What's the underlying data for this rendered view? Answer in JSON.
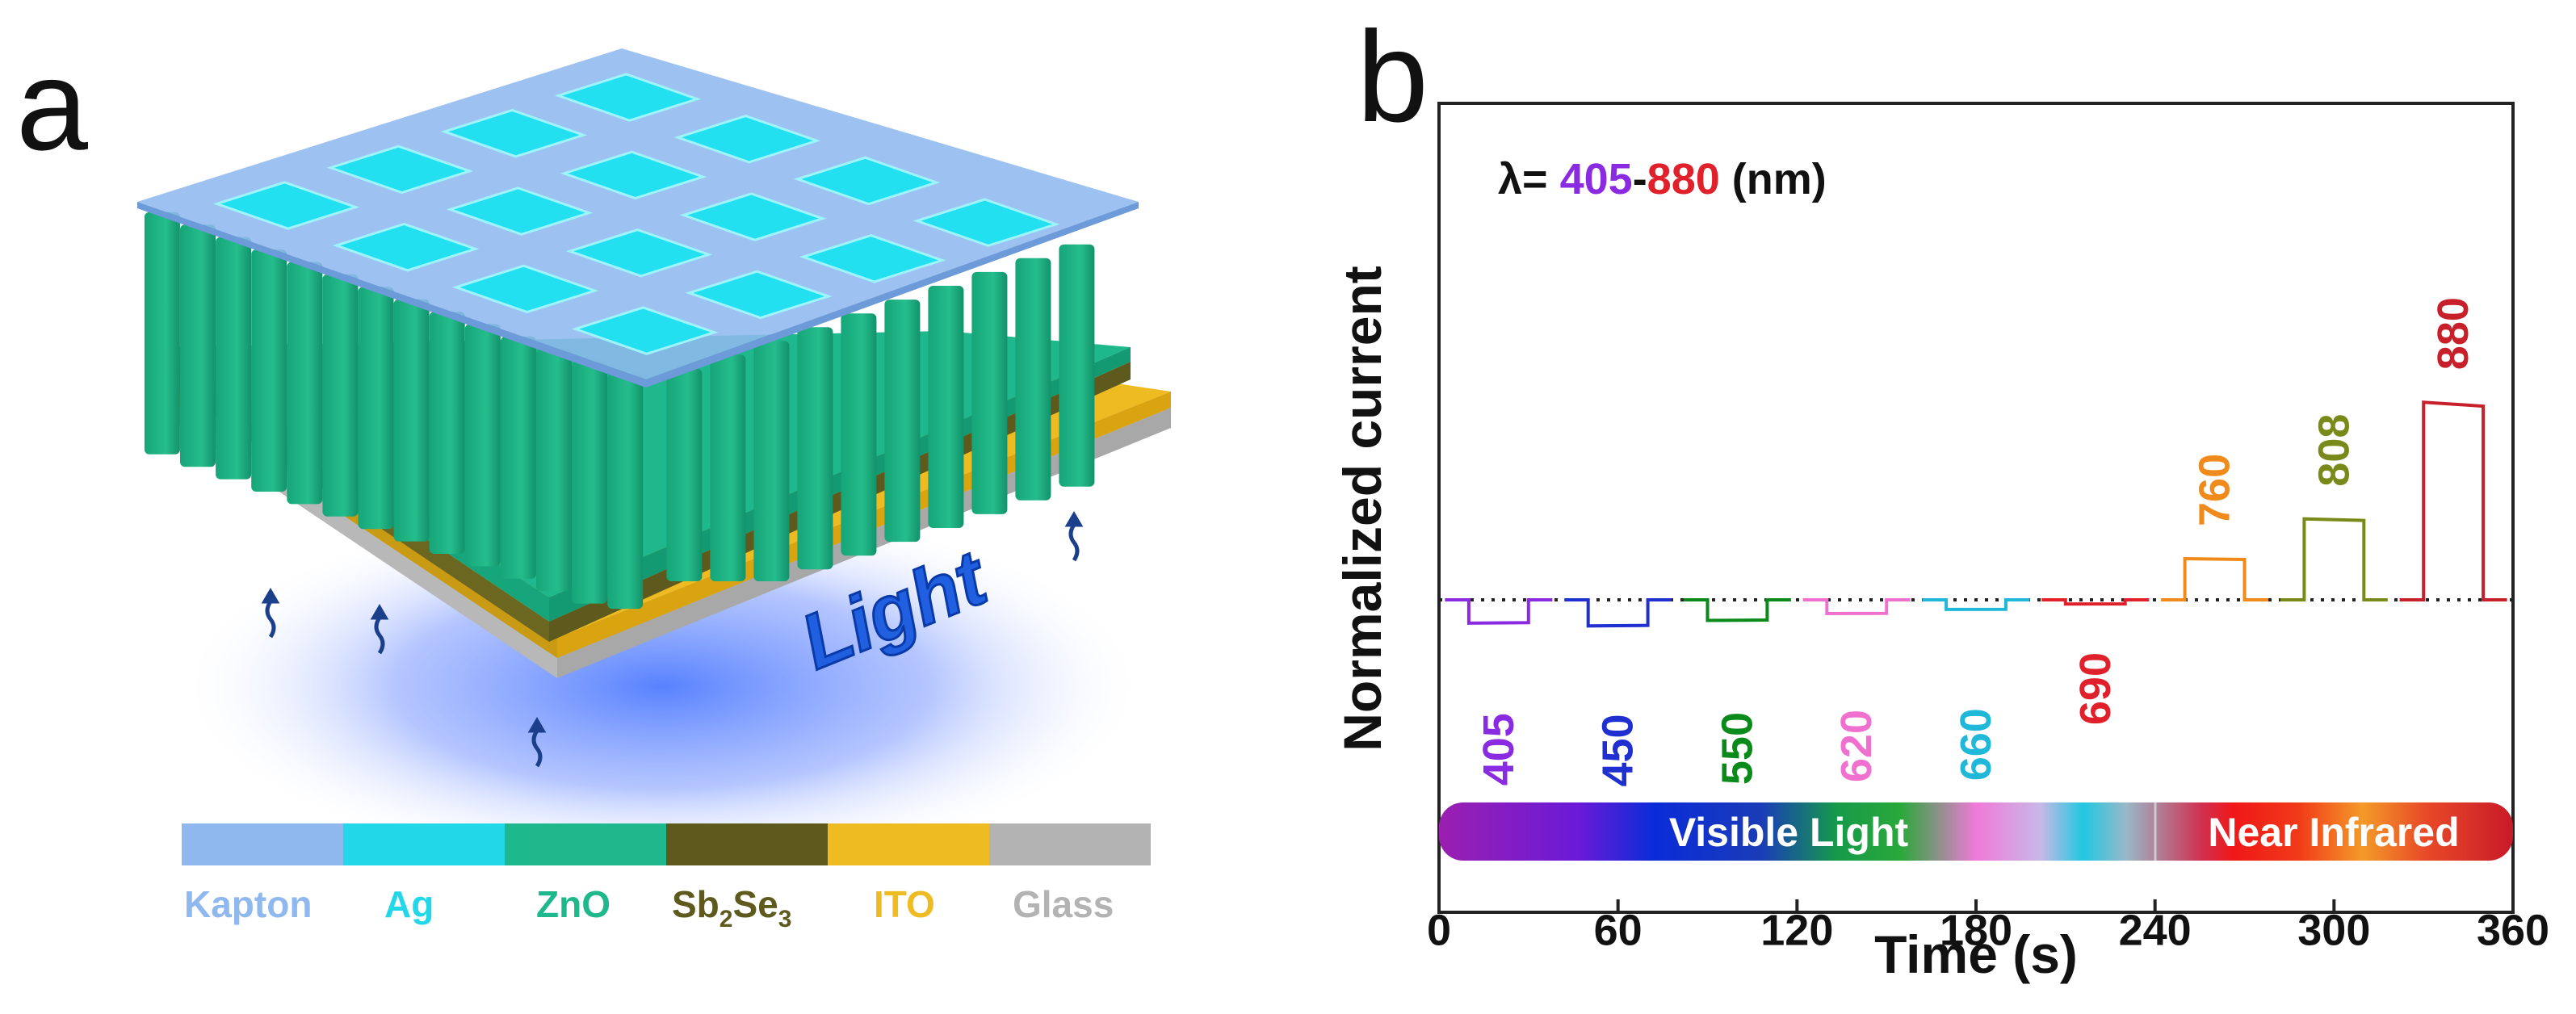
{
  "panel_a": {
    "label": "a",
    "light_text": "Light",
    "legend": [
      {
        "key": "kapton",
        "label": "Kapton",
        "color": "#8fb8ee"
      },
      {
        "key": "ag",
        "label": "Ag",
        "color": "#22d8e8"
      },
      {
        "key": "zno",
        "label": "ZnO",
        "color": "#1fb88c"
      },
      {
        "key": "sb2se3",
        "label": "Sb",
        "sub1": "2",
        "mid": "Se",
        "sub2": "3",
        "color": "#5e5a1e"
      },
      {
        "key": "ito",
        "label": "ITO",
        "color": "#efbb22"
      },
      {
        "key": "glass",
        "label": "Glass",
        "color": "#b3b3b3"
      }
    ]
  },
  "panel_b": {
    "label": "b",
    "annotation": {
      "prefix": "λ= ",
      "lo": "405",
      "dash": "-",
      "hi": "880",
      "unit": " (nm)",
      "lo_color": "#8a2be2",
      "hi_color": "#e0202a"
    },
    "spectrum_labels": {
      "visible": "Visible Light",
      "nir": "Near Infrared"
    }
  },
  "chart_data": {
    "type": "line",
    "title": "",
    "xlabel": "Time (s)",
    "ylabel": "Normalized current",
    "xlim": [
      0,
      360
    ],
    "ylim": [
      -1,
      2.1
    ],
    "xticks": [
      0,
      60,
      120,
      180,
      240,
      300,
      360
    ],
    "baseline": 0,
    "series": [
      {
        "name": "405",
        "color": "#8a2be2",
        "on": [
          10,
          30
        ],
        "level": -0.17
      },
      {
        "name": "450",
        "color": "#1f2fd0",
        "on": [
          50,
          70
        ],
        "level": -0.19
      },
      {
        "name": "550",
        "color": "#0a8a1a",
        "on": [
          90,
          110
        ],
        "level": -0.15
      },
      {
        "name": "620",
        "color": "#f070d0",
        "on": [
          130,
          150
        ],
        "level": -0.1
      },
      {
        "name": "660",
        "color": "#20b8d8",
        "on": [
          170,
          190
        ],
        "level": -0.07
      },
      {
        "name": "690",
        "color": "#e0202a",
        "on": [
          210,
          230
        ],
        "level": -0.03
      },
      {
        "name": "760",
        "color": "#f08a1a",
        "on": [
          250,
          270
        ],
        "level": 0.3
      },
      {
        "name": "808",
        "color": "#7a8a1a",
        "on": [
          290,
          310
        ],
        "level": 0.59
      },
      {
        "name": "880",
        "color": "#c8202a",
        "on": [
          330,
          350
        ],
        "level": 1.44
      }
    ]
  }
}
